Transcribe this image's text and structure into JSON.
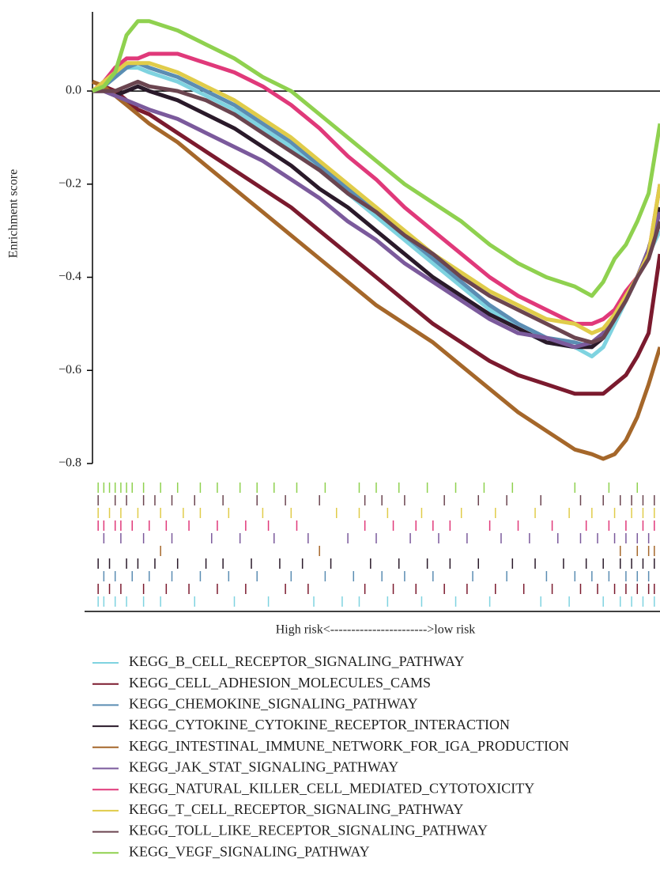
{
  "chart_data": {
    "type": "line",
    "y_label": "Enrichment score",
    "x_label": "High risk<----------------------->low risk",
    "x": [
      0,
      2,
      4,
      6,
      8,
      10,
      15,
      20,
      25,
      30,
      35,
      40,
      45,
      50,
      55,
      60,
      65,
      70,
      75,
      80,
      85,
      88,
      90,
      92,
      94,
      96,
      98,
      100
    ],
    "xlim": [
      0,
      100
    ],
    "ylim": [
      -0.8,
      0.17
    ],
    "yticks": [
      {
        "value": -0.8,
        "label": "−0.8"
      },
      {
        "value": -0.6,
        "label": "−0.6"
      },
      {
        "value": -0.4,
        "label": "−0.4"
      },
      {
        "value": -0.2,
        "label": "−0.2"
      },
      {
        "value": 0,
        "label": "0.0"
      }
    ],
    "zero_line": true,
    "series": [
      {
        "name": "KEGG_B_CELL_RECEPTOR_SIGNALING_PATHWAY",
        "color": "#7fd3e0",
        "values": [
          0,
          0.01,
          0.03,
          0.05,
          0.05,
          0.04,
          0.02,
          -0.01,
          -0.04,
          -0.08,
          -0.12,
          -0.17,
          -0.22,
          -0.27,
          -0.32,
          -0.37,
          -0.42,
          -0.47,
          -0.51,
          -0.54,
          -0.55,
          -0.57,
          -0.55,
          -0.5,
          -0.45,
          -0.4,
          -0.35,
          -0.3
        ],
        "hits": [
          1,
          2,
          4,
          6,
          9,
          12,
          18,
          25,
          31,
          39,
          44,
          47,
          52,
          58,
          64,
          70,
          79,
          84,
          90,
          93,
          95,
          97,
          99
        ]
      },
      {
        "name": "KEGG_CELL_ADHESION_MOLECULES_CAMS",
        "color": "#7b1a2e",
        "values": [
          0.02,
          0.01,
          0,
          -0.02,
          -0.04,
          -0.05,
          -0.09,
          -0.13,
          -0.17,
          -0.21,
          -0.25,
          -0.3,
          -0.35,
          -0.4,
          -0.45,
          -0.5,
          -0.54,
          -0.58,
          -0.61,
          -0.63,
          -0.65,
          -0.65,
          -0.65,
          -0.63,
          -0.61,
          -0.57,
          -0.52,
          -0.35
        ],
        "hits": [
          1,
          3,
          5,
          9,
          13,
          17,
          22,
          27,
          34,
          38,
          48,
          53,
          57,
          62,
          66,
          71,
          76,
          81,
          86,
          89,
          92,
          94,
          96,
          98,
          99
        ]
      },
      {
        "name": "KEGG_CHEMOKINE_SIGNALING_PATHWAY",
        "color": "#5b8db3",
        "values": [
          0,
          0.01,
          0.03,
          0.05,
          0.06,
          0.05,
          0.03,
          0,
          -0.03,
          -0.07,
          -0.11,
          -0.16,
          -0.21,
          -0.26,
          -0.31,
          -0.36,
          -0.41,
          -0.46,
          -0.5,
          -0.53,
          -0.54,
          -0.55,
          -0.52,
          -0.48,
          -0.44,
          -0.4,
          -0.34,
          -0.25
        ],
        "hits": [
          2,
          4,
          7,
          10,
          14,
          19,
          24,
          29,
          35,
          41,
          46,
          51,
          55,
          60,
          67,
          73,
          80,
          85,
          88,
          91,
          94,
          96,
          98
        ]
      },
      {
        "name": "KEGG_CYTOKINE_CYTOKINE_RECEPTOR_INTERACTION",
        "color": "#2a1a2a",
        "values": [
          0,
          0,
          -0.01,
          0,
          0.01,
          0,
          -0.02,
          -0.05,
          -0.08,
          -0.12,
          -0.16,
          -0.21,
          -0.25,
          -0.3,
          -0.35,
          -0.4,
          -0.44,
          -0.48,
          -0.51,
          -0.54,
          -0.55,
          -0.55,
          -0.53,
          -0.49,
          -0.44,
          -0.4,
          -0.34,
          -0.25
        ],
        "hits": [
          1,
          3,
          6,
          8,
          11,
          15,
          20,
          23,
          28,
          33,
          37,
          42,
          49,
          54,
          59,
          63,
          68,
          74,
          78,
          83,
          87,
          90,
          93,
          95,
          97,
          99
        ]
      },
      {
        "name": "KEGG_INTESTINAL_IMMUNE_NETWORK_FOR_IGA_PRODUCTION",
        "color": "#a5672a",
        "values": [
          0.02,
          0.01,
          -0.01,
          -0.03,
          -0.05,
          -0.07,
          -0.11,
          -0.16,
          -0.21,
          -0.26,
          -0.31,
          -0.36,
          -0.41,
          -0.46,
          -0.5,
          -0.54,
          -0.59,
          -0.64,
          -0.69,
          -0.73,
          -0.77,
          -0.78,
          -0.79,
          -0.78,
          -0.75,
          -0.7,
          -0.63,
          -0.55
        ],
        "hits": [
          12,
          40,
          93,
          96,
          98,
          99
        ]
      },
      {
        "name": "KEGG_JAK_STAT_SIGNALING_PATHWAY",
        "color": "#7b5a9c",
        "values": [
          0,
          0,
          -0.01,
          -0.02,
          -0.03,
          -0.04,
          -0.06,
          -0.09,
          -0.12,
          -0.15,
          -0.19,
          -0.23,
          -0.28,
          -0.32,
          -0.37,
          -0.41,
          -0.45,
          -0.49,
          -0.52,
          -0.53,
          -0.55,
          -0.54,
          -0.52,
          -0.48,
          -0.44,
          -0.4,
          -0.34,
          -0.26
        ],
        "hits": [
          2,
          5,
          9,
          14,
          21,
          26,
          32,
          38,
          45,
          50,
          56,
          61,
          66,
          72,
          77,
          82,
          86,
          89,
          92,
          94,
          96,
          98
        ]
      },
      {
        "name": "KEGG_NATURAL_KILLER_CELL_MEDIATED_CYTOTOXICITY",
        "color": "#e0397a",
        "values": [
          0,
          0.02,
          0.05,
          0.07,
          0.07,
          0.08,
          0.08,
          0.06,
          0.04,
          0.01,
          -0.03,
          -0.08,
          -0.14,
          -0.19,
          -0.25,
          -0.3,
          -0.35,
          -0.4,
          -0.44,
          -0.47,
          -0.5,
          -0.5,
          -0.49,
          -0.47,
          -0.43,
          -0.4,
          -0.35,
          -0.2
        ],
        "hits": [
          1,
          2,
          4,
          5,
          7,
          10,
          13,
          17,
          22,
          27,
          31,
          36,
          48,
          53,
          57,
          60,
          63,
          70,
          75,
          81,
          87,
          91,
          94,
          97,
          99
        ]
      },
      {
        "name": "KEGG_T_CELL_RECEPTOR_SIGNALING_PATHWAY",
        "color": "#e0cc4a",
        "values": [
          0,
          0.02,
          0.04,
          0.06,
          0.06,
          0.06,
          0.04,
          0.01,
          -0.02,
          -0.06,
          -0.1,
          -0.15,
          -0.2,
          -0.25,
          -0.3,
          -0.35,
          -0.39,
          -0.43,
          -0.46,
          -0.49,
          -0.5,
          -0.52,
          -0.51,
          -0.48,
          -0.44,
          -0.4,
          -0.35,
          -0.2
        ],
        "hits": [
          1,
          3,
          5,
          8,
          12,
          16,
          19,
          24,
          30,
          35,
          43,
          47,
          52,
          58,
          65,
          71,
          78,
          84,
          88,
          92,
          95,
          97,
          99
        ]
      },
      {
        "name": "KEGG_TOLL_LIKE_RECEPTOR_SIGNALING_PATHWAY",
        "color": "#6b4550",
        "values": [
          0,
          0,
          0,
          0.01,
          0.02,
          0.01,
          0,
          -0.02,
          -0.05,
          -0.09,
          -0.13,
          -0.17,
          -0.22,
          -0.26,
          -0.31,
          -0.35,
          -0.4,
          -0.44,
          -0.47,
          -0.5,
          -0.53,
          -0.54,
          -0.53,
          -0.49,
          -0.45,
          -0.4,
          -0.36,
          -0.28
        ],
        "hits": [
          1,
          4,
          6,
          9,
          11,
          14,
          18,
          23,
          29,
          34,
          40,
          48,
          51,
          55,
          62,
          68,
          73,
          79,
          86,
          90,
          93,
          95,
          97,
          99
        ]
      },
      {
        "name": "KEGG_VEGF_SIGNALING_PATHWAY",
        "color": "#8fd14f",
        "values": [
          0,
          0.01,
          0.04,
          0.12,
          0.15,
          0.15,
          0.13,
          0.1,
          0.07,
          0.03,
          0,
          -0.05,
          -0.1,
          -0.15,
          -0.2,
          -0.24,
          -0.28,
          -0.33,
          -0.37,
          -0.4,
          -0.42,
          -0.44,
          -0.41,
          -0.36,
          -0.33,
          -0.28,
          -0.22,
          -0.07
        ],
        "hits": [
          1,
          2,
          3,
          4,
          5,
          6,
          7,
          9,
          12,
          15,
          19,
          22,
          26,
          29,
          32,
          36,
          41,
          47,
          50,
          54,
          59,
          64,
          69,
          74,
          85,
          91,
          96
        ]
      }
    ]
  }
}
